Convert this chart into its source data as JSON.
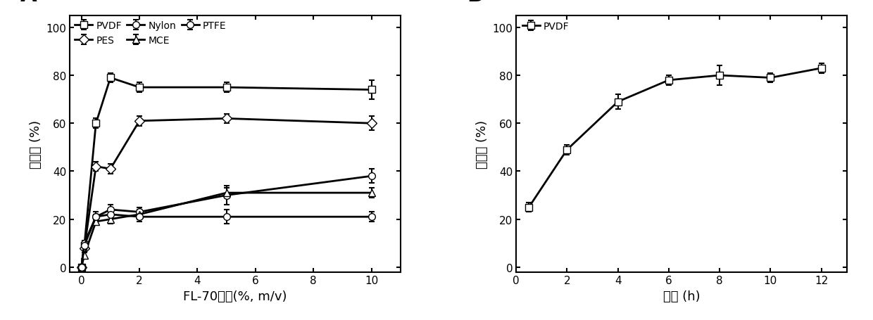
{
  "panel_A": {
    "label": "A",
    "xlabel": "FL-70浓度(%, m/v)",
    "ylabel": "回收率 (%)",
    "xlim": [
      -0.4,
      11
    ],
    "ylim": [
      -2,
      105
    ],
    "xticks": [
      0,
      2,
      4,
      6,
      8,
      10
    ],
    "yticks": [
      0,
      20,
      40,
      60,
      80,
      100
    ],
    "series": {
      "PVDF": {
        "x": [
          0,
          0.1,
          0.5,
          1,
          2,
          5,
          10
        ],
        "y": [
          0,
          9,
          60,
          79,
          75,
          75,
          74
        ],
        "yerr": [
          0.2,
          1,
          2,
          2,
          2,
          2,
          4
        ],
        "marker": "s",
        "linestyle": "-"
      },
      "PES": {
        "x": [
          0,
          0.1,
          0.5,
          1,
          2,
          5,
          10
        ],
        "y": [
          0,
          8,
          42,
          41,
          61,
          62,
          60
        ],
        "yerr": [
          0.2,
          1,
          2,
          2,
          2,
          2,
          3
        ],
        "marker": "D",
        "linestyle": "-"
      },
      "Nylon": {
        "x": [
          0,
          0.1,
          0.5,
          1,
          2,
          5,
          10
        ],
        "y": [
          0,
          10,
          21,
          24,
          23,
          30,
          38
        ],
        "yerr": [
          0.2,
          1,
          2,
          2,
          2,
          4,
          3
        ],
        "marker": "o",
        "linestyle": "-"
      },
      "MCE": {
        "x": [
          0,
          0.1,
          0.5,
          1,
          2,
          5,
          10
        ],
        "y": [
          0,
          5,
          19,
          20,
          22,
          31,
          31
        ],
        "yerr": [
          0.2,
          1,
          1,
          2,
          2,
          2,
          2
        ],
        "marker": "^",
        "linestyle": "-"
      },
      "PTFE": {
        "x": [
          0,
          0.1,
          0.5,
          1,
          2,
          5,
          10
        ],
        "y": [
          0,
          9,
          21,
          22,
          21,
          21,
          21
        ],
        "yerr": [
          0.2,
          1,
          1,
          2,
          2,
          3,
          2
        ],
        "marker": "o",
        "linestyle": "-"
      }
    },
    "legend_order": [
      "PVDF",
      "PES",
      "Nylon",
      "MCE",
      "PTFE"
    ]
  },
  "panel_B": {
    "label": "B",
    "xlabel": "时间 (h)",
    "ylabel": "回收率 (%)",
    "xlim": [
      0,
      13
    ],
    "ylim": [
      -2,
      105
    ],
    "xticks": [
      0,
      2,
      4,
      6,
      8,
      10,
      12
    ],
    "yticks": [
      0,
      20,
      40,
      60,
      80,
      100
    ],
    "series": {
      "PVDF": {
        "x": [
          0.5,
          2,
          4,
          6,
          8,
          10,
          12
        ],
        "y": [
          25,
          49,
          69,
          78,
          80,
          79,
          83
        ],
        "yerr": [
          2,
          2,
          3,
          2,
          4,
          2,
          2
        ],
        "marker": "s",
        "linestyle": "-"
      }
    }
  },
  "line_color": "#000000",
  "marker_facecolor": "#ffffff",
  "marker_edgecolor": "#000000",
  "linewidth": 2.0,
  "markersize": 7,
  "capsize": 3,
  "fontsize_label": 13,
  "fontsize_tick": 11,
  "fontsize_legend": 10,
  "fontsize_panel_label": 22
}
